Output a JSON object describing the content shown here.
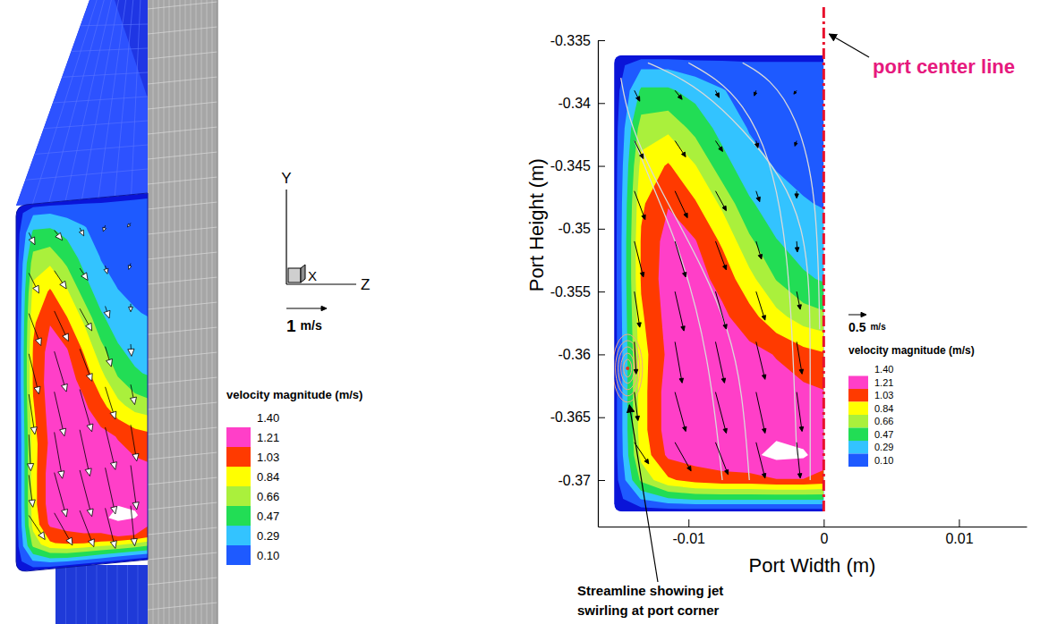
{
  "chart_data": [
    {
      "type": "contour3d",
      "axis_labels": [
        "Y",
        "X",
        "Z"
      ],
      "reference_vector": {
        "value": 1,
        "unit": "m/s"
      },
      "colorbar": {
        "title": "velocity magnitude (m/s)",
        "levels": [
          {
            "value": 0.1,
            "label": "0.10"
          },
          0.29,
          0.47,
          0.66,
          0.84,
          1.03,
          1.21,
          {
            "value": 1.4,
            "label": "1.40"
          }
        ],
        "colors": [
          "#1e5aff",
          "#33c3ff",
          "#22dd55",
          "#aaf03c",
          "#ffff00",
          "#ff3a00",
          "#ff3fc8",
          "#ffffff"
        ]
      }
    },
    {
      "type": "contour",
      "xlabel": "Port Width (m)",
      "ylabel": "Port Height (m)",
      "xlim": [
        -0.0167,
        0.015
      ],
      "ylim": [
        -0.3737,
        -0.335
      ],
      "xticks": [
        -0.01,
        0,
        0.01
      ],
      "yticks": [
        -0.335,
        -0.34,
        -0.345,
        -0.35,
        -0.355,
        -0.36,
        -0.365,
        -0.37
      ],
      "field": {
        "x": [
          -0.0155,
          -0.0135,
          -0.0115,
          -0.0095,
          -0.0075,
          -0.0055,
          -0.0035,
          -0.0015,
          0
        ],
        "y": [
          -0.3725,
          -0.3715,
          -0.37,
          -0.368,
          -0.366,
          -0.363,
          -0.36,
          -0.357,
          -0.354,
          -0.351,
          -0.348,
          -0.345,
          -0.342,
          -0.339,
          -0.337,
          -0.3362
        ],
        "values": [
          [
            0,
            0,
            0,
            0,
            0,
            0,
            0,
            0,
            0
          ],
          [
            0,
            0.3,
            0.45,
            0.5,
            0.5,
            0.5,
            0.5,
            0.5,
            0.5
          ],
          [
            0,
            0.7,
            1,
            1.1,
            1.15,
            1.15,
            1.2,
            1.2,
            1.15
          ],
          [
            0,
            0.9,
            1.25,
            1.3,
            1.32,
            1.36,
            1.45,
            1.43,
            1.3
          ],
          [
            0,
            0.95,
            1.3,
            1.33,
            1.33,
            1.34,
            1.36,
            1.3,
            1.25
          ],
          [
            0,
            0.95,
            1.3,
            1.35,
            1.33,
            1.3,
            1.28,
            1.25,
            1.22
          ],
          [
            0,
            0.95,
            1.25,
            1.3,
            1.3,
            1.27,
            1.2,
            1.1,
            1.05
          ],
          [
            0,
            1,
            1.28,
            1.3,
            1.25,
            1.1,
            0.9,
            0.75,
            0.7
          ],
          [
            0,
            1.05,
            1.3,
            1.28,
            1.15,
            0.9,
            0.65,
            0.5,
            0.45
          ],
          [
            0,
            1.05,
            1.28,
            1.22,
            1,
            0.7,
            0.48,
            0.38,
            0.35
          ],
          [
            0,
            1,
            1.2,
            1.05,
            0.8,
            0.5,
            0.35,
            0.3,
            0.28
          ],
          [
            0,
            0.9,
            1.05,
            0.85,
            0.55,
            0.35,
            0.28,
            0.25,
            0.25
          ],
          [
            0,
            0.75,
            0.8,
            0.6,
            0.4,
            0.28,
            0.25,
            0.22,
            0.22
          ],
          [
            0,
            0.5,
            0.5,
            0.4,
            0.3,
            0.22,
            0.2,
            0.2,
            0.2
          ],
          [
            0,
            0.25,
            0.25,
            0.2,
            0.18,
            0.15,
            0.15,
            0.15,
            0.15
          ],
          [
            0,
            0,
            0,
            0,
            0,
            0,
            0,
            0,
            0
          ]
        ]
      },
      "colorbar": {
        "title": "velocity magnitude (m/s)",
        "levels": [
          {
            "value": 0.1,
            "label": "0.10"
          },
          0.29,
          0.47,
          0.66,
          0.84,
          1.03,
          1.21,
          {
            "value": 1.4,
            "label": "1.40"
          }
        ],
        "colors": [
          "#1e5aff",
          "#33c3ff",
          "#22dd55",
          "#aaf03c",
          "#ffff00",
          "#ff3a00",
          "#ff3fc8",
          "#ffffff"
        ]
      },
      "vectors": {
        "x": [
          -0.014,
          -0.011,
          -0.008,
          -0.005,
          -0.002,
          -0.014,
          -0.011,
          -0.008,
          -0.005,
          -0.002,
          -0.014,
          -0.011,
          -0.008,
          -0.005,
          -0.002,
          -0.014,
          -0.011,
          -0.008,
          -0.005,
          -0.002,
          -0.014,
          -0.011,
          -0.008,
          -0.005,
          -0.002,
          -0.014,
          -0.011,
          -0.008,
          -0.005,
          -0.002,
          -0.014,
          -0.011,
          -0.008,
          -0.005,
          -0.002,
          -0.014,
          -0.011,
          -0.008,
          -0.005,
          -0.002
        ],
        "y": [
          -0.339,
          -0.339,
          -0.339,
          -0.339,
          -0.339,
          -0.343,
          -0.343,
          -0.343,
          -0.343,
          -0.343,
          -0.347,
          -0.347,
          -0.347,
          -0.347,
          -0.347,
          -0.351,
          -0.351,
          -0.351,
          -0.351,
          -0.351,
          -0.355,
          -0.355,
          -0.355,
          -0.355,
          -0.355,
          -0.359,
          -0.359,
          -0.359,
          -0.359,
          -0.359,
          -0.363,
          -0.363,
          -0.363,
          -0.363,
          -0.363,
          -0.367,
          -0.367,
          -0.367,
          -0.367,
          -0.367
        ],
        "u": [
          0.15,
          0.2,
          0.1,
          -0.05,
          -0.08,
          0.25,
          0.3,
          0.2,
          0.05,
          -0.05,
          0.3,
          0.35,
          0.3,
          0.1,
          0,
          0.25,
          0.3,
          0.3,
          0.15,
          0.02,
          0.15,
          0.25,
          0.3,
          0.25,
          0.1,
          0.05,
          0.2,
          0.25,
          0.25,
          0.15,
          0.1,
          0.3,
          0.3,
          0.25,
          0.15,
          0.4,
          0.45,
          0.35,
          0.25,
          0.1
        ],
        "v": [
          -0.3,
          -0.25,
          -0.2,
          -0.15,
          -0.1,
          -0.5,
          -0.45,
          -0.3,
          -0.2,
          -0.15,
          -0.8,
          -0.75,
          -0.55,
          -0.3,
          -0.2,
          -1,
          -1,
          -0.8,
          -0.5,
          -0.3,
          -1,
          -1.1,
          -1.05,
          -0.8,
          -0.5,
          -0.9,
          -1.15,
          -1.15,
          -1.05,
          -0.9,
          -0.8,
          -1.1,
          -1.15,
          -1.15,
          -1.1,
          -0.6,
          -0.8,
          -0.9,
          -1,
          -1
        ]
      },
      "reference_vector": {
        "value": 0.5,
        "unit": "m/s"
      },
      "streamlines": [
        {
          "x": [
            -0.013,
            -0.0115,
            -0.009,
            -0.006,
            -0.003,
            -0.0015,
            -0.001,
            -0.001,
            -0.001
          ],
          "y": [
            -0.3368,
            -0.3375,
            -0.339,
            -0.342,
            -0.346,
            -0.35,
            -0.355,
            -0.362,
            -0.37
          ]
        },
        {
          "x": [
            -0.01,
            -0.008,
            -0.006,
            -0.004,
            -0.0025,
            -0.002
          ],
          "y": [
            -0.3368,
            -0.338,
            -0.34,
            -0.344,
            -0.352,
            -0.368
          ]
        },
        {
          "x": [
            -0.015,
            -0.0145,
            -0.013,
            -0.011,
            -0.009,
            -0.007,
            -0.006,
            -0.0055
          ],
          "y": [
            -0.338,
            -0.341,
            -0.345,
            -0.349,
            -0.353,
            -0.358,
            -0.363,
            -0.37
          ]
        },
        {
          "x": [
            -0.014,
            -0.0125,
            -0.0105,
            -0.0085,
            -0.0075
          ],
          "y": [
            -0.343,
            -0.347,
            -0.352,
            -0.36,
            -0.37
          ]
        },
        {
          "x": [
            -0.006,
            -0.004,
            -0.002,
            -0.0005,
            -0.0003
          ],
          "y": [
            -0.3368,
            -0.338,
            -0.341,
            -0.347,
            -0.358
          ]
        }
      ],
      "swirl": {
        "x": -0.0145,
        "y": -0.3611,
        "rx": [
          0.0003,
          0.0005,
          0.0007,
          0.0009,
          0.0011
        ],
        "ry": [
          0.0007,
          0.0012,
          0.0017,
          0.0022,
          0.0027
        ]
      },
      "annotations": [
        {
          "text": "port center line",
          "x": 0
        },
        {
          "text": "Streamline showing jet swirling at port corner"
        }
      ]
    }
  ]
}
